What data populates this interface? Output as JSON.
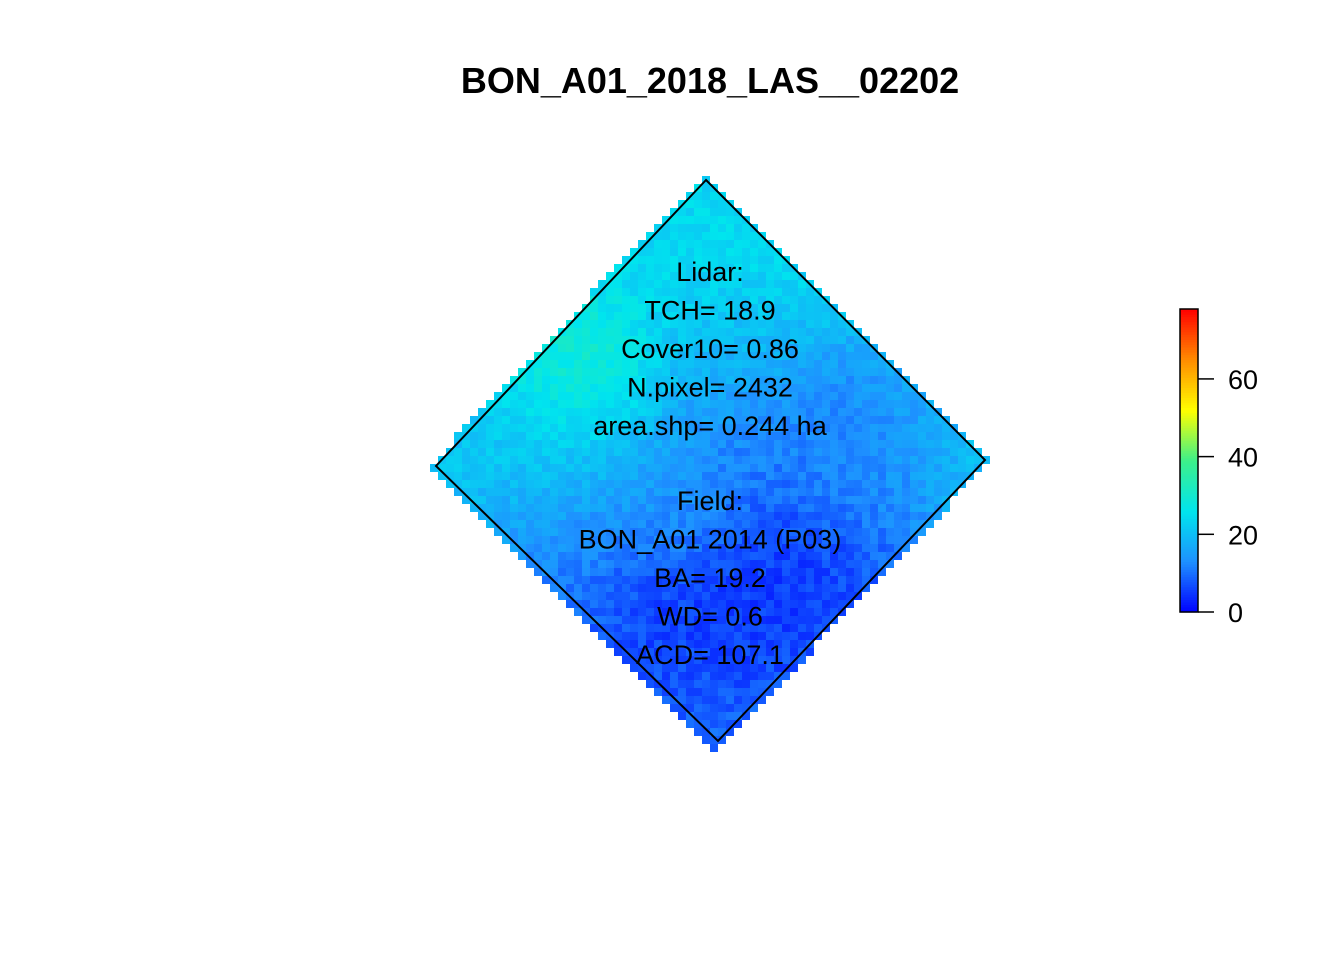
{
  "chart_data": {
    "type": "heatmap",
    "title": "BON_A01_2018_LAS__02202",
    "xlabel": "",
    "ylabel": "",
    "colorbar": {
      "range": [
        0,
        78
      ],
      "ticks": [
        0,
        20,
        40,
        60
      ],
      "tick_labels": [
        "0",
        "20",
        "40",
        "60"
      ],
      "palette": [
        "#0000ff",
        "#1e90ff",
        "#00e5ee",
        "#3cf08a",
        "#ffff00",
        "#ff8c00",
        "#ff0000"
      ]
    },
    "plot_shape": "rotated-square",
    "height_field": {
      "base_value": 21,
      "patches": [
        {
          "u": 0.12,
          "v": 0.12,
          "r": 0.2,
          "value": 25
        },
        {
          "u": 0.3,
          "v": 0.05,
          "r": 0.15,
          "value": 24
        },
        {
          "u": 0.45,
          "v": 0.35,
          "r": 0.15,
          "value": 12
        },
        {
          "u": 0.6,
          "v": 0.2,
          "r": 0.12,
          "value": 10
        },
        {
          "u": 0.75,
          "v": 0.25,
          "r": 0.12,
          "value": 14
        },
        {
          "u": 0.85,
          "v": 0.55,
          "r": 0.18,
          "value": 3
        },
        {
          "u": 0.7,
          "v": 0.8,
          "r": 0.22,
          "value": 2
        },
        {
          "u": 0.4,
          "v": 0.95,
          "r": 0.12,
          "value": 10
        },
        {
          "u": 0.12,
          "v": 0.55,
          "r": 0.12,
          "value": 33
        },
        {
          "u": 0.25,
          "v": 0.78,
          "r": 0.15,
          "value": 22
        },
        {
          "u": 0.55,
          "v": 0.62,
          "r": 0.1,
          "value": 18
        },
        {
          "u": 0.9,
          "v": 0.92,
          "r": 0.1,
          "value": 8
        },
        {
          "u": 0.35,
          "v": 0.25,
          "r": 0.1,
          "value": 20
        }
      ]
    },
    "annotations": {
      "lidar": [
        "Lidar:",
        "TCH= 18.9",
        "Cover10= 0.86",
        "N.pixel= 2432",
        "area.shp= 0.244 ha"
      ],
      "field": [
        "Field:",
        "BON_A01 2014 (P03)",
        "BA= 19.2",
        "WD= 0.6",
        "ACD= 107.1"
      ]
    }
  }
}
